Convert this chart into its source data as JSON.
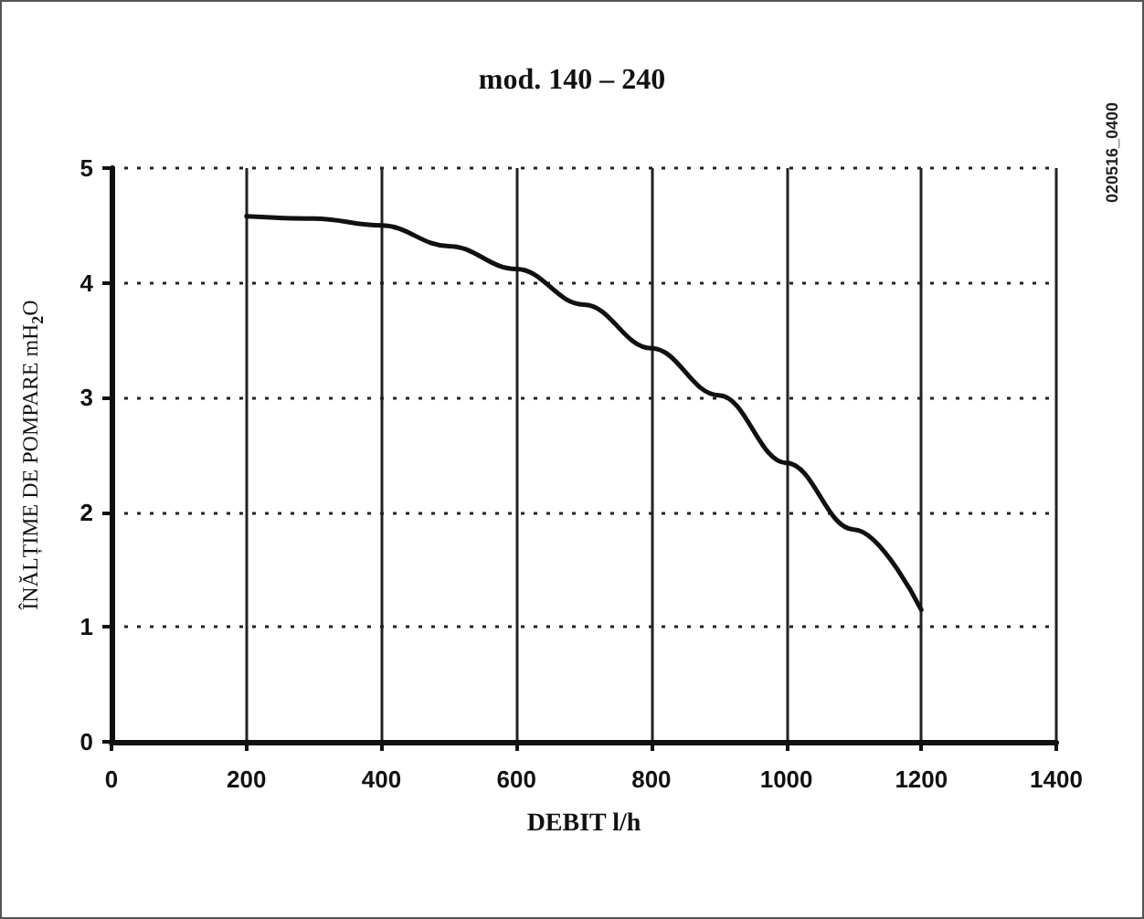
{
  "chart_data": {
    "type": "line",
    "title": "mod. 140 – 240",
    "xlabel": "DEBIT l/h",
    "ylabel": "ÎNĂLȚIME DE POMPARE mH$_{2}$O",
    "annotations": [
      "020516_0400"
    ],
    "x": [
      200,
      300,
      400,
      500,
      600,
      700,
      800,
      900,
      1000,
      1100,
      1200
    ],
    "series": [
      {
        "color": "#111111",
        "values": [
          4.58,
          4.56,
          4.5,
          4.32,
          4.12,
          3.81,
          3.43,
          3.02,
          2.43,
          1.85,
          1.15
        ]
      }
    ],
    "xlim": [
      0,
      1400
    ],
    "xticks": [
      0,
      200,
      400,
      600,
      800,
      1000,
      1200,
      1400
    ],
    "ylim": [
      0,
      5
    ],
    "yticks": [
      0,
      1,
      2,
      3,
      4,
      5
    ],
    "grid": true,
    "marker": "none",
    "line_style": "solid"
  }
}
